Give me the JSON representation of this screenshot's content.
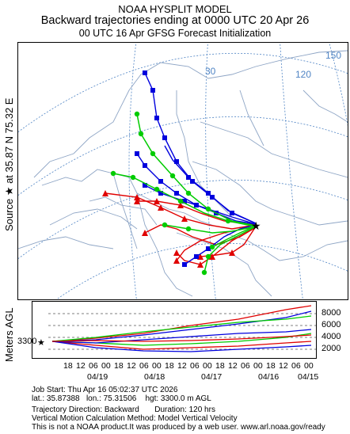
{
  "header": {
    "line1": "NOAA HYSPLIT MODEL",
    "line2": "Backward trajectories ending at 0000 UTC 20 Apr 26",
    "line3": "00 UTC 16 Apr    GFSG  Forecast Initialization"
  },
  "side_label": {
    "text": "Source ★ at  35.87 N   75.32 E"
  },
  "map": {
    "lat_labels": [
      "30",
      "120",
      "150"
    ],
    "source_star": "★",
    "colors": {
      "red": "#e00000",
      "blue": "#0000dd",
      "green": "#00cc00",
      "grid": "#4f84c4",
      "land": "#8ea5c5"
    }
  },
  "vertical": {
    "axis_title": "Meters AGL",
    "start_height": "3300",
    "y_ticks": [
      "8000",
      "6000",
      "4000",
      "2000"
    ],
    "x_hours": [
      "18",
      "12",
      "06",
      "00",
      "18",
      "12",
      "06",
      "00",
      "18",
      "12",
      "06",
      "00",
      "18",
      "12",
      "06",
      "00",
      "18",
      "12",
      "06",
      "00"
    ],
    "x_dates": [
      "04/19",
      "04/18",
      "04/17",
      "04/16",
      "04/15"
    ]
  },
  "footer": {
    "line1": "Job Start: Thu Apr 16 05:02:37 UTC 2026",
    "line2": "lat.: 35.87388   lon.: 75.31506    hgt: 3300.0 m AGL",
    "line3": "Trajectory Direction: Backward       Duration: 120 hrs",
    "line4": "Vertical Motion Calculation Method: Model Vertical Velocity",
    "line5": "This is not a NOAA product.It was produced by a web user. www.arl.noaa.gov/ready"
  }
}
